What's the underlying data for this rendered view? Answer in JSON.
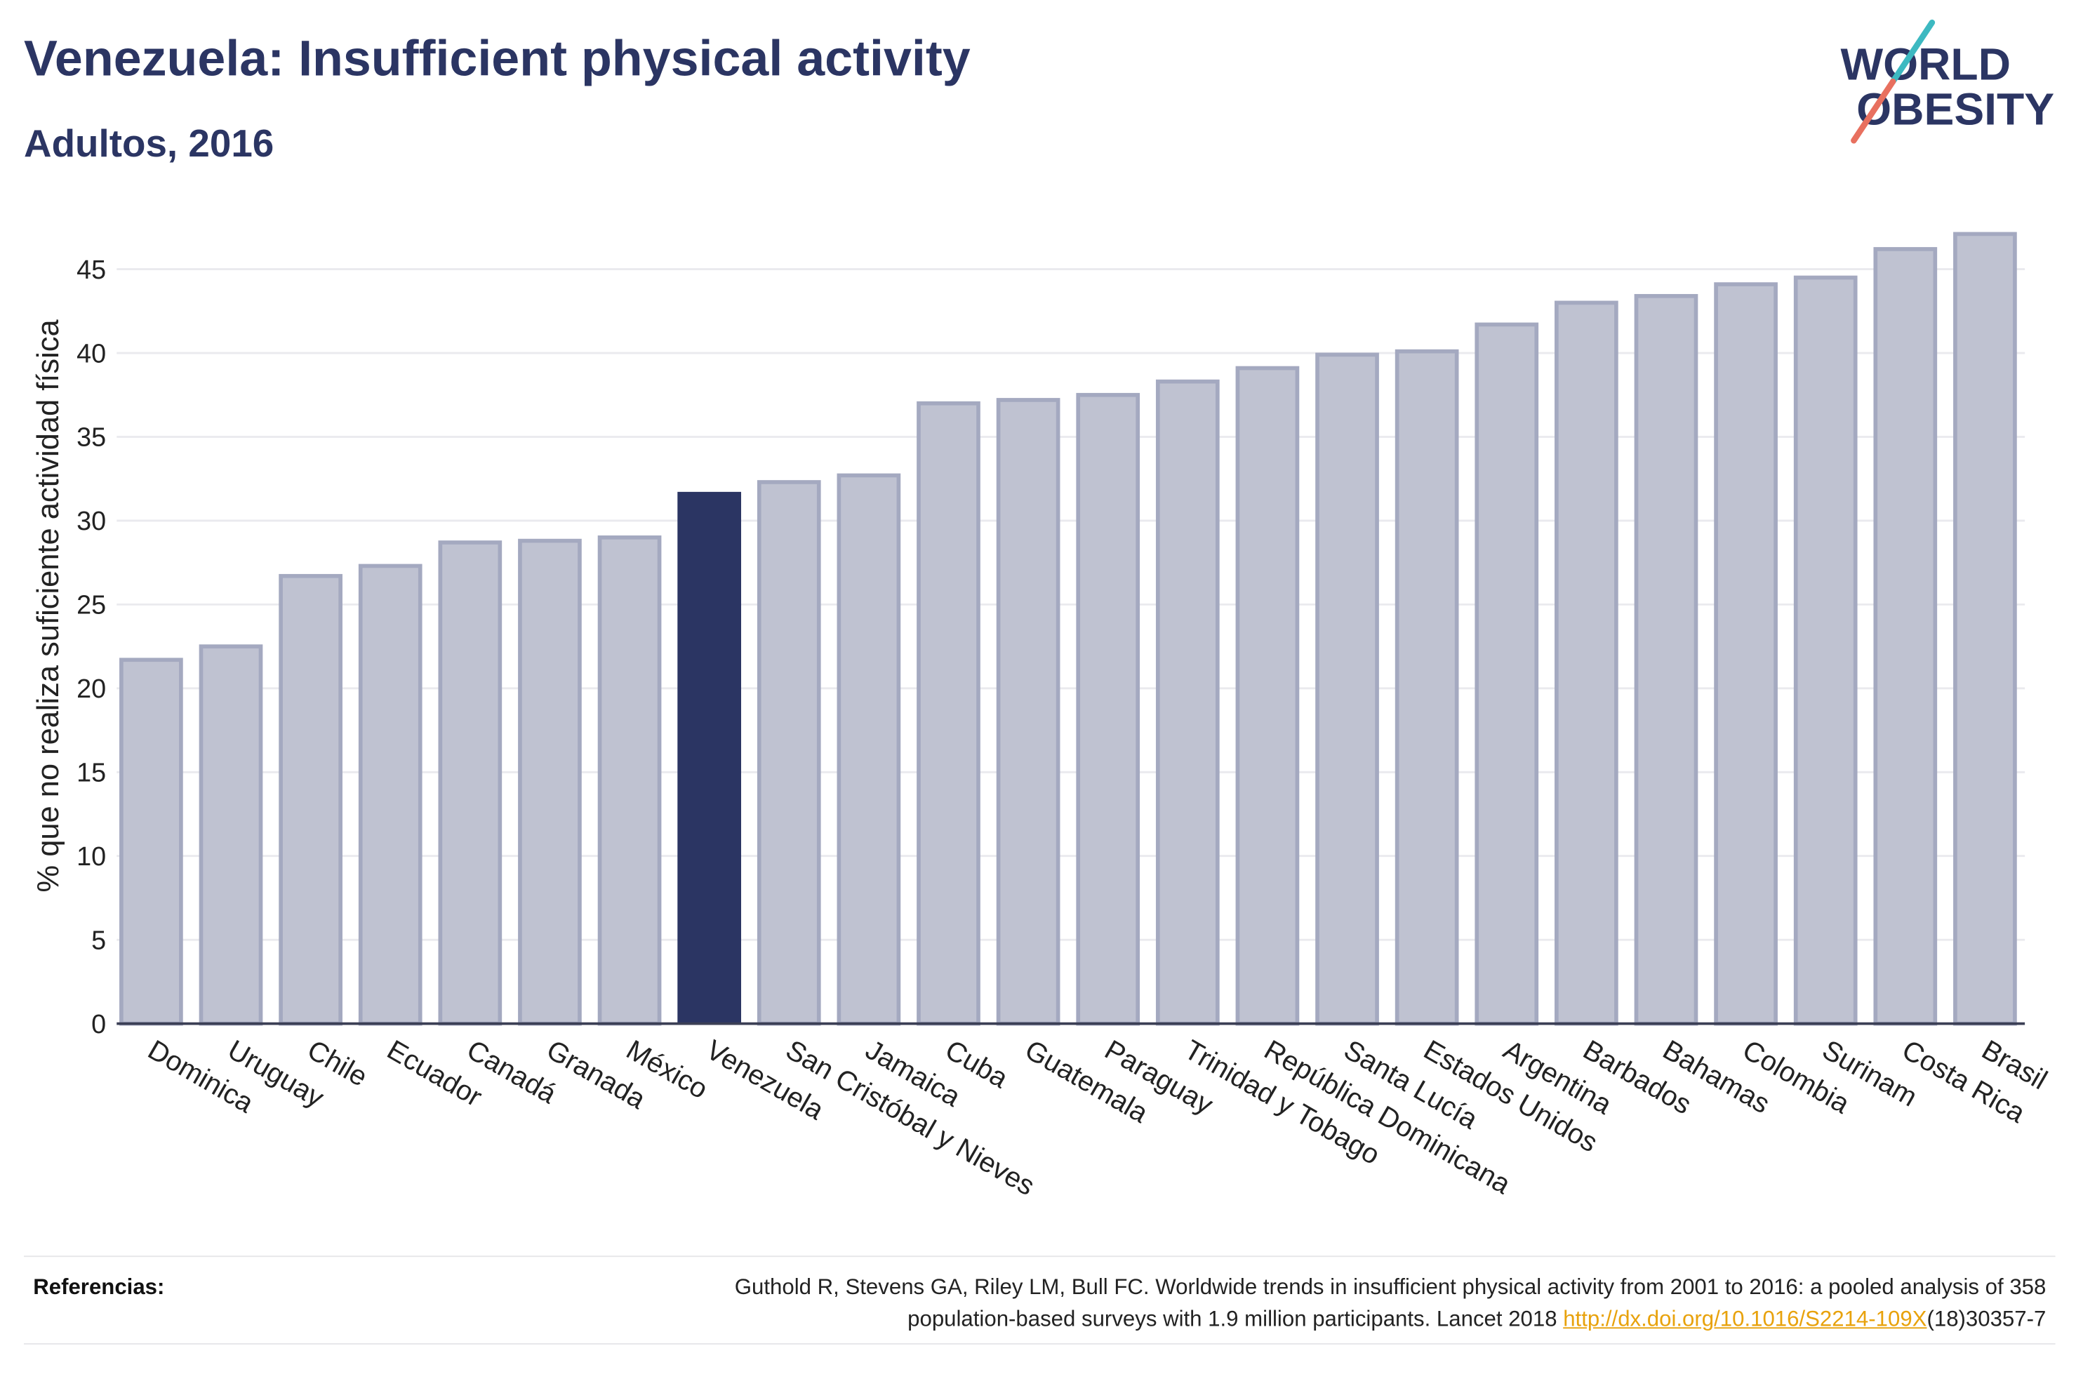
{
  "theme": {
    "navy": "#2b3563",
    "text": "#222222",
    "link": "#e8a20c",
    "rule": "#e6e6e9"
  },
  "logo": {
    "line1": "WORLD",
    "line2": "OBESITY",
    "slash_top_color": "#3db9c1",
    "slash_bottom_color": "#e8705f"
  },
  "chart_data": {
    "type": "bar",
    "title": "Venezuela: Insufficient physical activity",
    "subtitle": "Adultos, 2016",
    "ylabel": "% que no realiza suficiente actividad física",
    "categories": [
      "Dominica",
      "Uruguay",
      "Chile",
      "Ecuador",
      "Canadá",
      "Granada",
      "México",
      "Venezuela",
      "San Cristóbal y Nieves",
      "Jamaica",
      "Cuba",
      "Guatemala",
      "Paraguay",
      "Trinidad y Tobago",
      "República Dominicana",
      "Santa Lucía",
      "Estados Unidos",
      "Argentina",
      "Barbados",
      "Bahamas",
      "Colombia",
      "Surinam",
      "Costa Rica",
      "Brasil"
    ],
    "values": [
      21.7,
      22.5,
      26.7,
      27.3,
      28.7,
      28.8,
      29.0,
      31.6,
      32.3,
      32.7,
      37.0,
      37.2,
      37.5,
      38.3,
      39.1,
      39.9,
      40.1,
      41.7,
      43.0,
      43.4,
      44.1,
      44.5,
      46.2,
      47.1
    ],
    "highlight_index": 7,
    "ylim": [
      0,
      49.5
    ],
    "yticks": [
      0,
      5,
      10,
      15,
      20,
      25,
      30,
      35,
      40,
      45
    ],
    "grid": true,
    "colors": {
      "bar": "#bfc2d1",
      "bar_border": "#a4a9c0",
      "highlight": "#2b3563",
      "grid": "#eaeaee",
      "axis": "#3b3f55"
    }
  },
  "references": {
    "label": "Referencias:",
    "citation_line1": "Guthold R, Stevens GA, Riley LM, Bull FC. Worldwide trends in insufficient physical activity from 2001 to 2016: a pooled analysis of 358",
    "citation_line2": "population-based surveys with 1.9 million participants. Lancet 2018 ",
    "link_text": "http://dx.doi.org/10.1016/S2214-109X",
    "link_suffix": "(18)30357-7"
  }
}
